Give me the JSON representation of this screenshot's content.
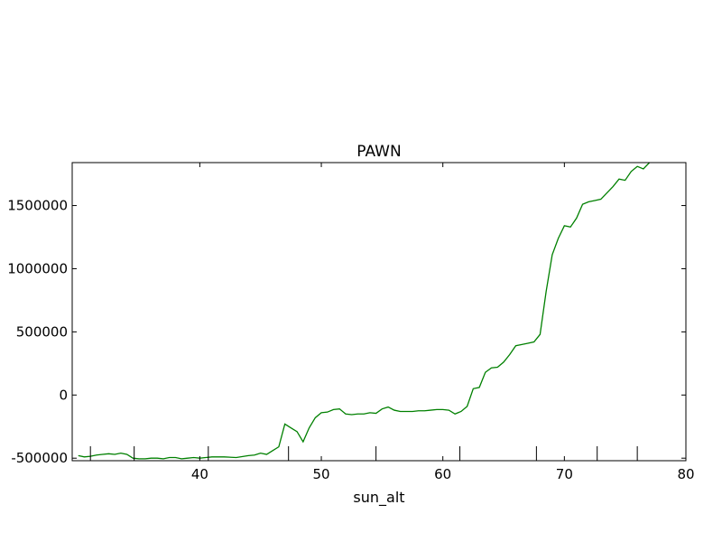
{
  "chart_data": {
    "type": "line",
    "title": "PAWN",
    "xlabel": "sun_alt",
    "ylabel": "",
    "xlim": [
      29.5,
      80
    ],
    "ylim": [
      -520000,
      1840000
    ],
    "xticks": [
      40,
      50,
      60,
      70,
      80
    ],
    "yticks": [
      -500000,
      0,
      500000,
      1000000,
      1500000
    ],
    "xtick_labels": [
      "40",
      "50",
      "60",
      "70",
      "80"
    ],
    "ytick_labels": [
      "-500000",
      "0",
      "500000",
      "1000000",
      "1500000"
    ],
    "rug_x": [
      31.0,
      34.6,
      40.7,
      47.3,
      54.5,
      61.4,
      67.7,
      72.7,
      76.0
    ],
    "grid": false,
    "series": [
      {
        "color": "#008000",
        "x": [
          30.0,
          30.5,
          31.0,
          31.5,
          32.0,
          32.5,
          33.0,
          33.5,
          34.0,
          34.5,
          35.0,
          35.5,
          36.0,
          36.5,
          37.0,
          37.5,
          38.0,
          38.5,
          39.0,
          39.5,
          40.0,
          40.5,
          41.0,
          42.0,
          43.0,
          44.0,
          44.5,
          45.0,
          45.5,
          46.0,
          46.5,
          47.0,
          47.5,
          48.0,
          48.5,
          49.0,
          49.5,
          50.0,
          50.5,
          51.0,
          51.5,
          52.0,
          52.5,
          53.0,
          53.5,
          54.0,
          54.5,
          55.0,
          55.5,
          56.0,
          56.5,
          57.0,
          57.5,
          58.0,
          58.5,
          59.0,
          59.5,
          60.0,
          60.5,
          61.0,
          61.5,
          62.0,
          62.5,
          63.0,
          63.5,
          64.0,
          64.5,
          65.0,
          65.5,
          66.0,
          66.5,
          67.0,
          67.5,
          68.0,
          68.5,
          69.0,
          69.5,
          70.0,
          70.5,
          71.0,
          71.5,
          72.0,
          72.5,
          73.0,
          73.5,
          74.0,
          74.5,
          75.0,
          75.5,
          76.0,
          76.5,
          77.0
        ],
        "y": [
          -480000,
          -490000,
          -485000,
          -475000,
          -470000,
          -465000,
          -470000,
          -460000,
          -470000,
          -500000,
          -505000,
          -505000,
          -500000,
          -500000,
          -505000,
          -495000,
          -495000,
          -505000,
          -500000,
          -495000,
          -500000,
          -495000,
          -490000,
          -490000,
          -495000,
          -480000,
          -475000,
          -460000,
          -470000,
          -440000,
          -410000,
          -230000,
          -260000,
          -290000,
          -370000,
          -260000,
          -180000,
          -140000,
          -135000,
          -115000,
          -110000,
          -150000,
          -155000,
          -150000,
          -150000,
          -140000,
          -145000,
          -110000,
          -95000,
          -120000,
          -130000,
          -130000,
          -130000,
          -125000,
          -125000,
          -120000,
          -115000,
          -115000,
          -120000,
          -150000,
          -130000,
          -90000,
          50000,
          60000,
          180000,
          215000,
          220000,
          260000,
          320000,
          390000,
          400000,
          410000,
          420000,
          480000,
          820000,
          1110000,
          1240000,
          1340000,
          1330000,
          1400000,
          1510000,
          1530000,
          1540000,
          1550000,
          1600000,
          1650000,
          1710000,
          1700000,
          1770000,
          1810000,
          1790000,
          1840000
        ]
      }
    ]
  }
}
